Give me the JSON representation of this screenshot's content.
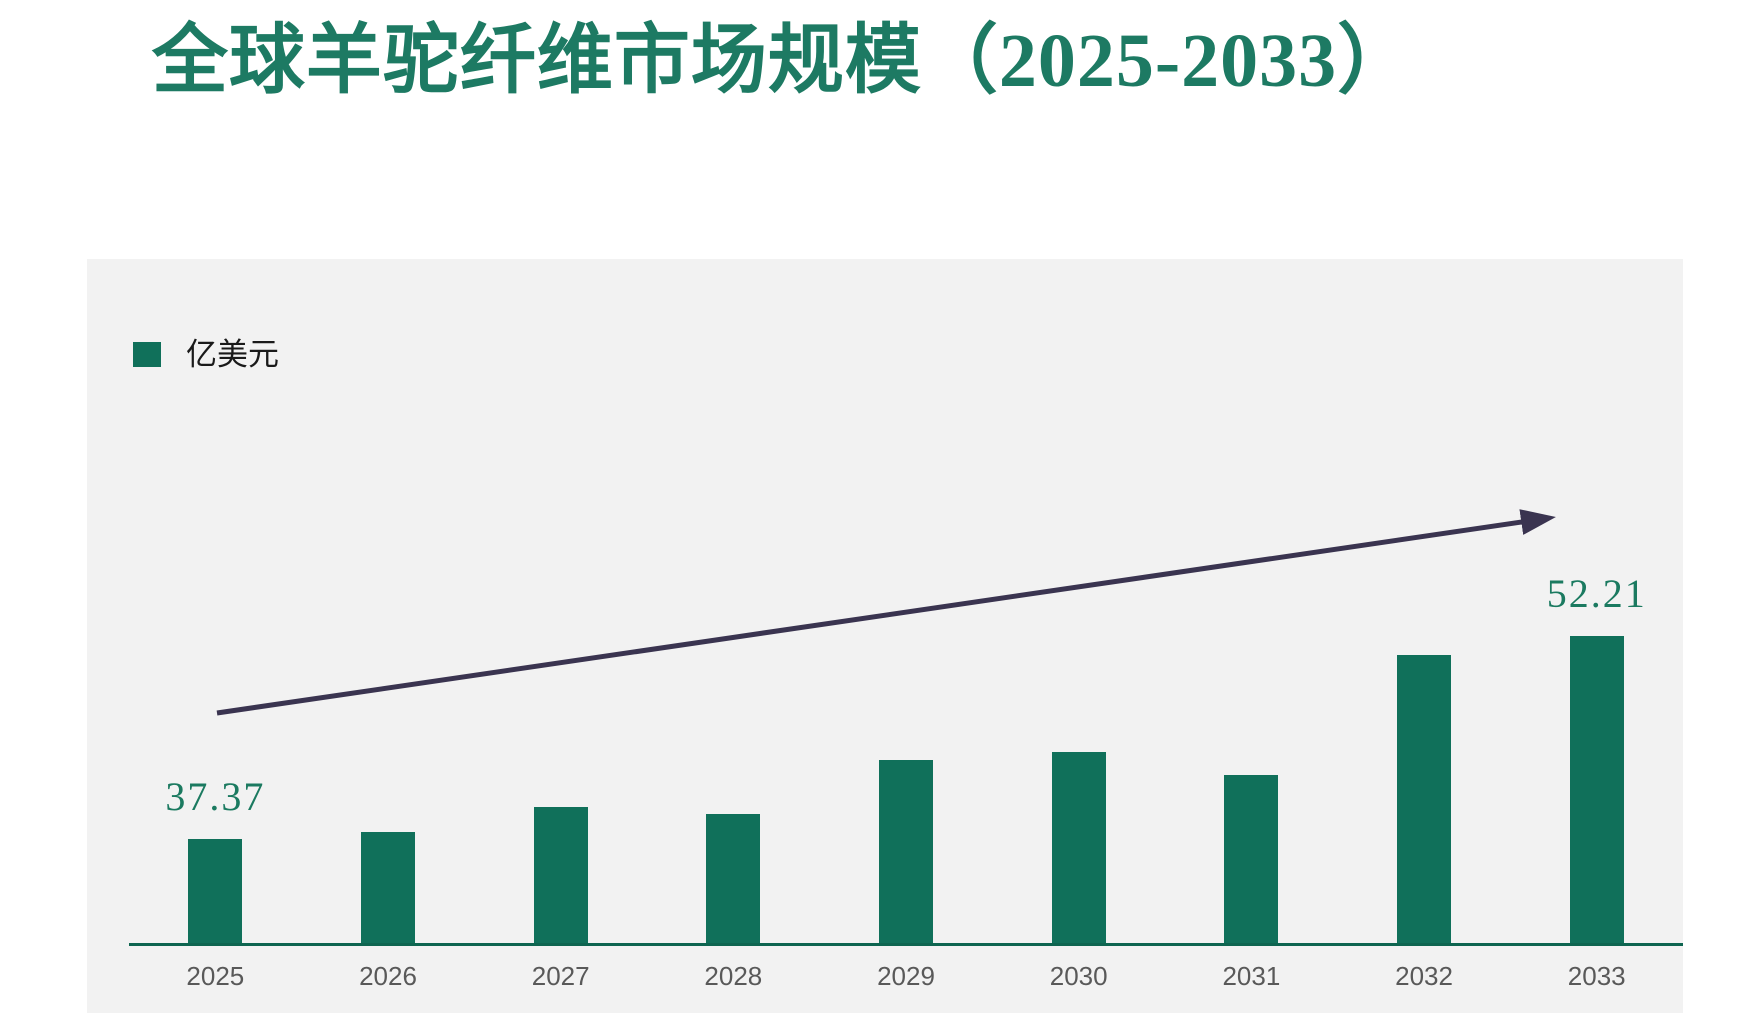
{
  "title": "全球羊驼纤维市场规模（2025-2033）",
  "legend": {
    "label": "亿美元"
  },
  "colors": {
    "page_bg": "#FFFFFF",
    "panel_bg": "#F2F2F2",
    "bar": "#10705A",
    "axis_line": "#0E6550",
    "title_text": "#1D7A63",
    "value_label": "#1B7A60",
    "year_label": "#595959",
    "arrow": "#3A3450"
  },
  "chart_data": {
    "type": "bar",
    "title": "全球羊驼纤维市场规模（2025-2033）",
    "series_name": "亿美元",
    "unit": "亿美元",
    "categories": [
      "2025",
      "2026",
      "2027",
      "2028",
      "2029",
      "2030",
      "2031",
      "2032",
      "2033"
    ],
    "values": [
      37.37,
      37.9,
      39.7,
      39.2,
      43.1,
      43.7,
      42.0,
      50.8,
      52.21
    ],
    "data_labels": [
      "37.37",
      null,
      null,
      null,
      null,
      null,
      null,
      null,
      "52.21"
    ],
    "xlabel": "",
    "ylabel": "",
    "ylim": [
      29.7,
      53
    ],
    "grid": false,
    "y_axis_visible": false,
    "legend_position": "top-left",
    "annotations": [
      {
        "type": "arrow",
        "description": "upward trend arrow across bars"
      }
    ]
  }
}
